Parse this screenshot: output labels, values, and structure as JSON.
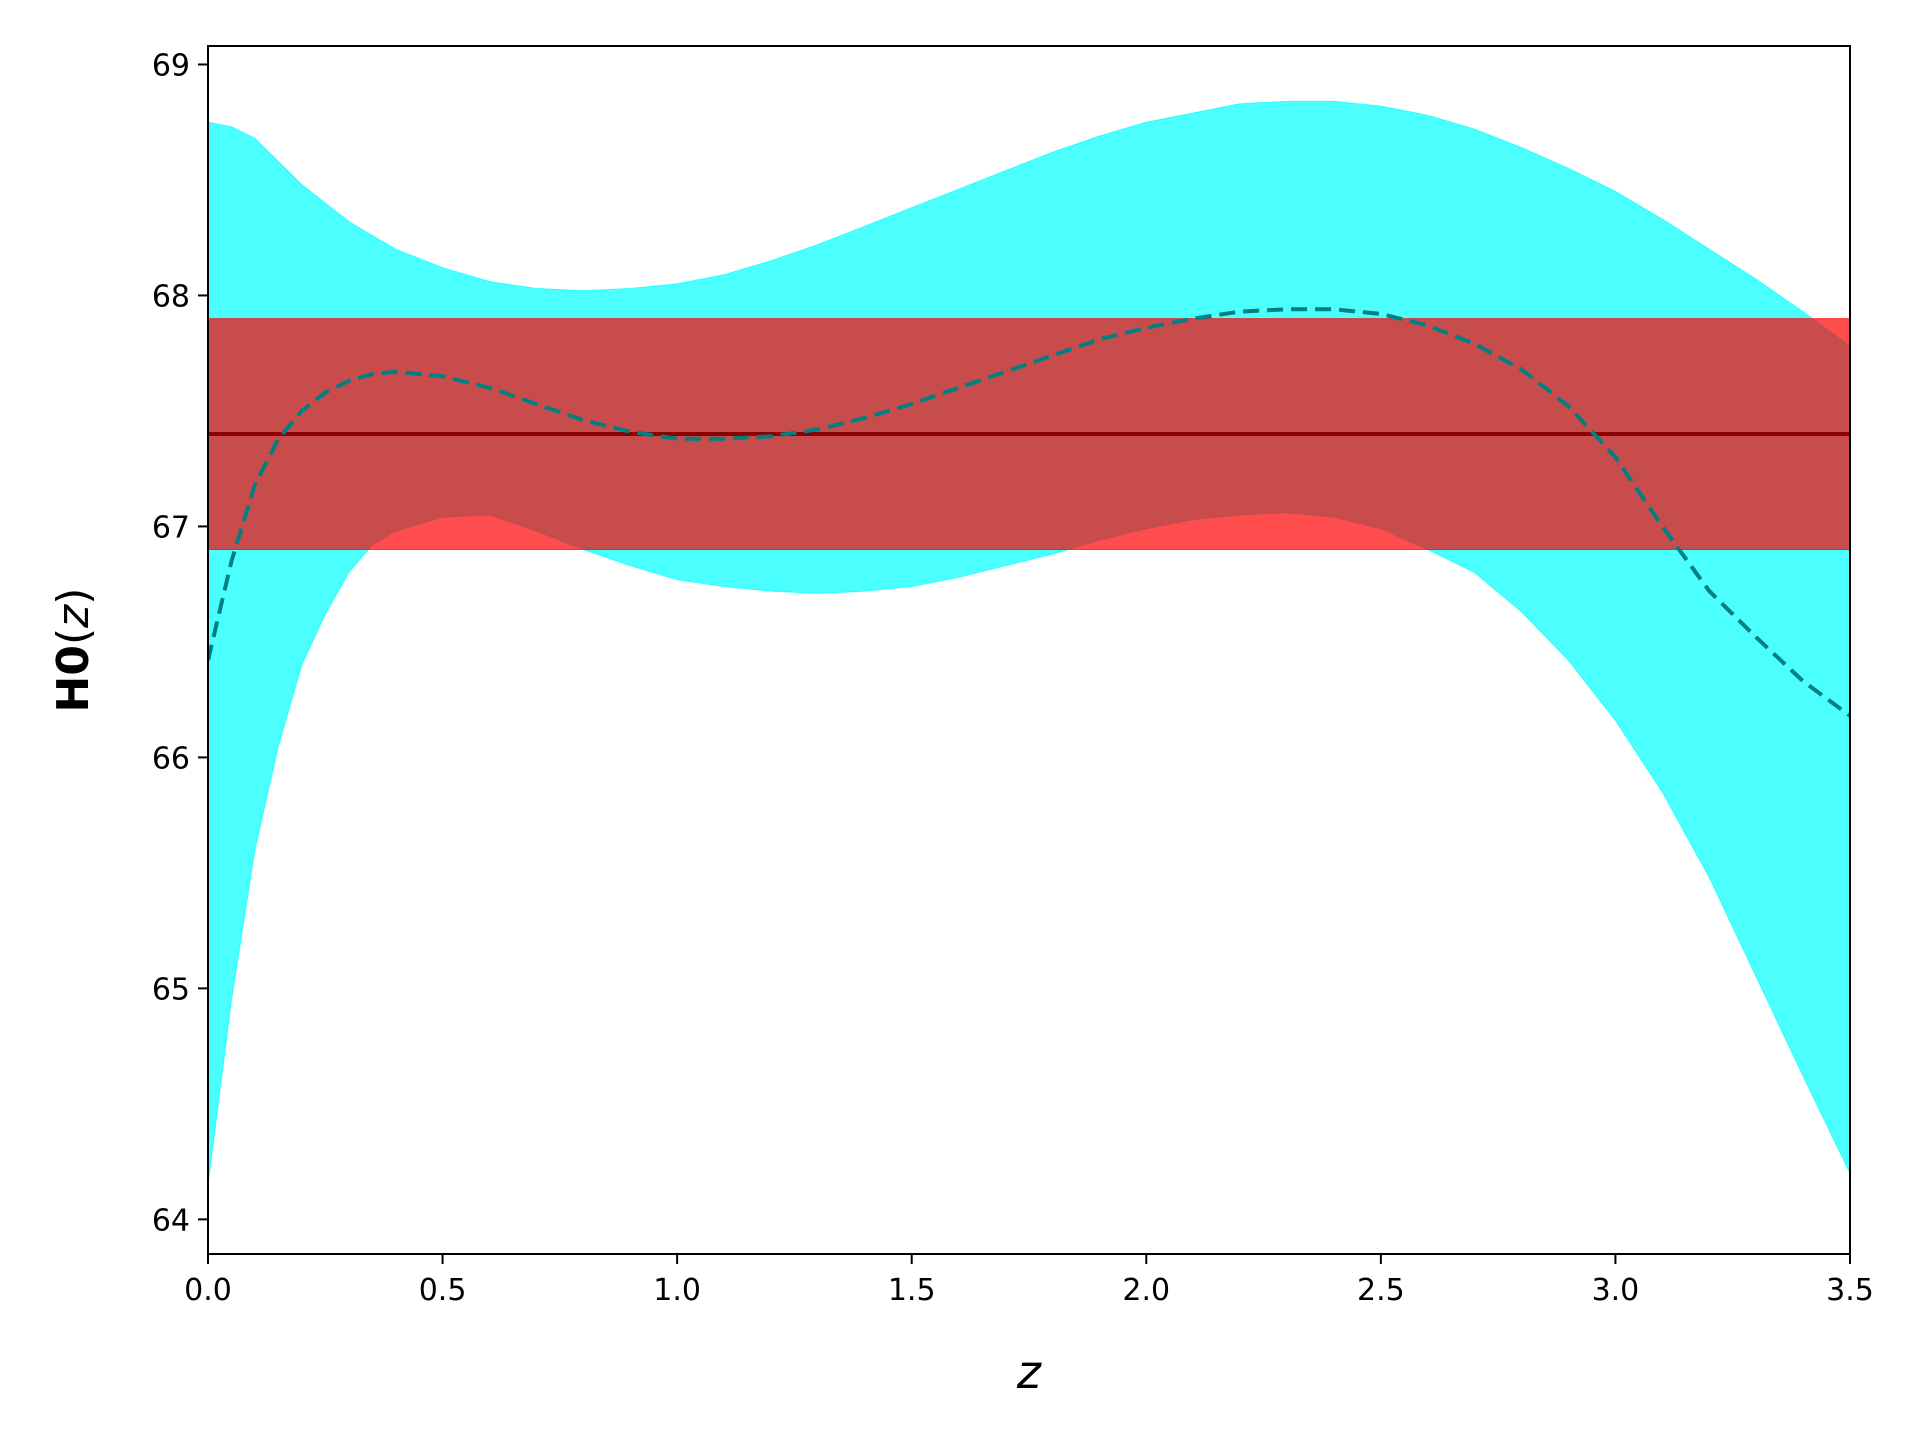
{
  "chart_data": {
    "type": "line",
    "title": "",
    "xlabel": "z",
    "ylabel": {
      "bold": "H0",
      "paren_open": "(",
      "var": "z",
      "paren_close": ")"
    },
    "xlim": [
      0.0,
      3.5
    ],
    "ylim": [
      63.85,
      69.08
    ],
    "xticks": [
      0.0,
      0.5,
      1.0,
      1.5,
      2.0,
      2.5,
      3.0,
      3.5
    ],
    "xtick_labels": [
      "0.0",
      "0.5",
      "1.0",
      "1.5",
      "2.0",
      "2.5",
      "3.0",
      "3.5"
    ],
    "yticks": [
      64,
      65,
      66,
      67,
      68,
      69
    ],
    "ytick_labels": [
      "64",
      "65",
      "66",
      "67",
      "68",
      "69"
    ],
    "grid": false,
    "legend": null,
    "series": [
      {
        "kind": "band",
        "color": "#00ffff",
        "opacity": 0.7,
        "x": [
          0.0,
          0.05,
          0.1,
          0.15,
          0.2,
          0.25,
          0.3,
          0.35,
          0.4,
          0.5,
          0.6,
          0.7,
          0.8,
          0.9,
          1.0,
          1.1,
          1.2,
          1.3,
          1.4,
          1.5,
          1.6,
          1.7,
          1.8,
          1.9,
          2.0,
          2.1,
          2.2,
          2.3,
          2.4,
          2.5,
          2.6,
          2.7,
          2.8,
          2.9,
          3.0,
          3.1,
          3.2,
          3.3,
          3.4,
          3.5
        ],
        "lower": [
          64.15,
          64.95,
          65.6,
          66.05,
          66.4,
          66.62,
          66.8,
          66.92,
          66.98,
          67.04,
          67.05,
          66.98,
          66.9,
          66.83,
          66.77,
          66.74,
          66.72,
          66.71,
          66.72,
          66.74,
          66.78,
          66.83,
          66.88,
          66.94,
          66.99,
          67.03,
          67.05,
          67.06,
          67.04,
          66.99,
          66.9,
          66.8,
          66.63,
          66.42,
          66.16,
          65.85,
          65.48,
          65.05,
          64.62,
          64.2
        ],
        "upper": [
          68.75,
          68.73,
          68.68,
          68.58,
          68.48,
          68.4,
          68.32,
          68.26,
          68.2,
          68.12,
          68.06,
          68.03,
          68.02,
          68.03,
          68.05,
          68.09,
          68.15,
          68.22,
          68.3,
          68.38,
          68.46,
          68.54,
          68.62,
          68.69,
          68.75,
          68.79,
          68.83,
          68.84,
          68.84,
          68.82,
          68.78,
          68.72,
          68.64,
          68.55,
          68.45,
          68.33,
          68.2,
          68.07,
          67.93,
          67.78
        ]
      },
      {
        "kind": "band",
        "color": "#ff0000",
        "opacity": 0.7,
        "x": [
          0.0,
          3.5
        ],
        "lower": [
          66.9,
          66.9
        ],
        "upper": [
          67.9,
          67.9
        ]
      },
      {
        "kind": "line",
        "color": "#8b0000",
        "style": "solid",
        "x": [
          0.0,
          3.5
        ],
        "y": [
          67.4,
          67.4
        ]
      },
      {
        "kind": "line",
        "color": "#008080",
        "style": "dashed",
        "x": [
          0.0,
          0.05,
          0.1,
          0.15,
          0.2,
          0.25,
          0.3,
          0.35,
          0.4,
          0.5,
          0.6,
          0.7,
          0.8,
          0.9,
          1.0,
          1.1,
          1.2,
          1.3,
          1.4,
          1.5,
          1.6,
          1.7,
          1.8,
          1.9,
          2.0,
          2.1,
          2.2,
          2.3,
          2.4,
          2.5,
          2.6,
          2.7,
          2.8,
          2.9,
          3.0,
          3.1,
          3.2,
          3.3,
          3.4,
          3.5
        ],
        "y": [
          66.42,
          66.85,
          67.18,
          67.38,
          67.5,
          67.58,
          67.63,
          67.66,
          67.67,
          67.65,
          67.6,
          67.53,
          67.46,
          67.41,
          67.38,
          67.38,
          67.39,
          67.42,
          67.47,
          67.53,
          67.6,
          67.67,
          67.74,
          67.81,
          67.86,
          67.9,
          67.93,
          67.94,
          67.94,
          67.92,
          67.87,
          67.79,
          67.68,
          67.52,
          67.3,
          67.0,
          66.72,
          66.52,
          66.33,
          66.18
        ]
      }
    ]
  }
}
